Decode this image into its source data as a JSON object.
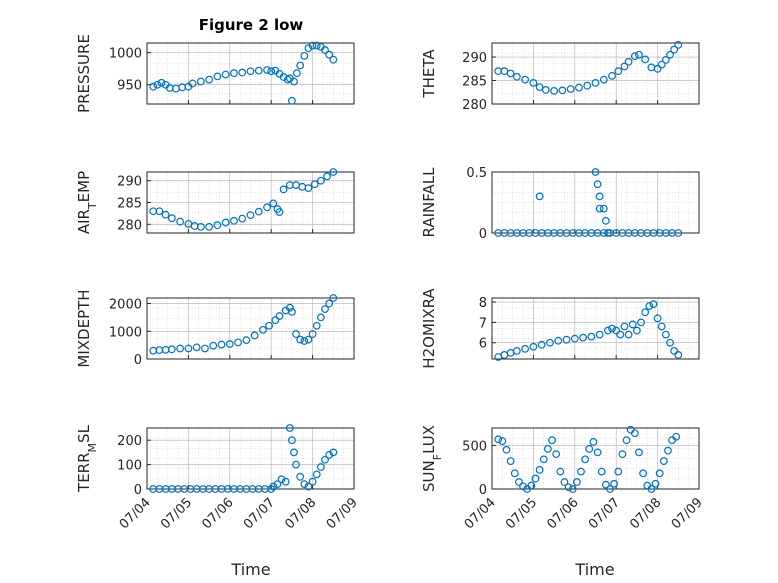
{
  "figure": {
    "title": "Figure 2 low",
    "xlabel": "Time",
    "x_ticks": [
      "07/04",
      "07/05",
      "07/06",
      "07/07",
      "07/08",
      "07/09"
    ]
  },
  "chart_data": [
    {
      "type": "scatter",
      "ylabel": "PRESSURE",
      "title": "Figure 2 low",
      "ylim": [
        920,
        1015
      ],
      "yticks": [
        950,
        1000
      ],
      "grid": true,
      "x_unit": "days since 07/04",
      "points": [
        [
          0.15,
          947
        ],
        [
          0.25,
          950
        ],
        [
          0.35,
          953
        ],
        [
          0.45,
          950
        ],
        [
          0.55,
          945
        ],
        [
          0.7,
          944
        ],
        [
          0.85,
          946
        ],
        [
          1.0,
          947
        ],
        [
          1.1,
          952
        ],
        [
          1.3,
          955
        ],
        [
          1.5,
          958
        ],
        [
          1.7,
          963
        ],
        [
          1.9,
          966
        ],
        [
          2.1,
          968
        ],
        [
          2.3,
          969
        ],
        [
          2.5,
          971
        ],
        [
          2.7,
          972
        ],
        [
          2.9,
          973
        ],
        [
          3.0,
          971
        ],
        [
          3.1,
          972
        ],
        [
          3.2,
          967
        ],
        [
          3.3,
          962
        ],
        [
          3.4,
          958
        ],
        [
          3.45,
          960
        ],
        [
          3.5,
          925
        ],
        [
          3.55,
          955
        ],
        [
          3.62,
          968
        ],
        [
          3.7,
          980
        ],
        [
          3.8,
          995
        ],
        [
          3.9,
          1007
        ],
        [
          4.0,
          1011
        ],
        [
          4.1,
          1011
        ],
        [
          4.2,
          1009
        ],
        [
          4.3,
          1004
        ],
        [
          4.4,
          997
        ],
        [
          4.5,
          989
        ]
      ]
    },
    {
      "type": "scatter",
      "ylabel": "THETA",
      "ylim": [
        280,
        293
      ],
      "yticks": [
        280,
        285,
        290
      ],
      "grid": true,
      "points": [
        [
          0.15,
          287
        ],
        [
          0.3,
          287
        ],
        [
          0.45,
          286.5
        ],
        [
          0.6,
          285.8
        ],
        [
          0.8,
          285.2
        ],
        [
          1.0,
          284.5
        ],
        [
          1.15,
          283.6
        ],
        [
          1.3,
          283
        ],
        [
          1.5,
          282.8
        ],
        [
          1.7,
          282.9
        ],
        [
          1.9,
          283.2
        ],
        [
          2.1,
          283.5
        ],
        [
          2.3,
          283.9
        ],
        [
          2.5,
          284.5
        ],
        [
          2.7,
          285.2
        ],
        [
          2.9,
          286
        ],
        [
          3.05,
          287
        ],
        [
          3.2,
          288
        ],
        [
          3.3,
          289
        ],
        [
          3.45,
          290.2
        ],
        [
          3.55,
          290.5
        ],
        [
          3.7,
          289.5
        ],
        [
          3.85,
          287.8
        ],
        [
          4.0,
          287.5
        ],
        [
          4.1,
          288.4
        ],
        [
          4.2,
          289.4
        ],
        [
          4.3,
          290.5
        ],
        [
          4.4,
          291.6
        ],
        [
          4.5,
          292.6
        ]
      ]
    },
    {
      "type": "scatter",
      "ylabel": "AIR_TEMP",
      "ylim": [
        278,
        292
      ],
      "yticks": [
        280,
        285,
        290
      ],
      "grid": true,
      "points": [
        [
          0.15,
          283
        ],
        [
          0.3,
          283
        ],
        [
          0.45,
          282.2
        ],
        [
          0.6,
          281.4
        ],
        [
          0.8,
          280.6
        ],
        [
          1.0,
          280.1
        ],
        [
          1.15,
          279.6
        ],
        [
          1.3,
          279.4
        ],
        [
          1.5,
          279.4
        ],
        [
          1.7,
          279.8
        ],
        [
          1.9,
          280.4
        ],
        [
          2.1,
          280.8
        ],
        [
          2.3,
          281.3
        ],
        [
          2.5,
          282.1
        ],
        [
          2.7,
          282.9
        ],
        [
          2.9,
          283.9
        ],
        [
          3.05,
          284.8
        ],
        [
          3.15,
          283.5
        ],
        [
          3.2,
          282.8
        ],
        [
          3.3,
          288
        ],
        [
          3.45,
          289
        ],
        [
          3.6,
          289
        ],
        [
          3.75,
          288.6
        ],
        [
          3.9,
          288.3
        ],
        [
          4.05,
          289.2
        ],
        [
          4.2,
          290
        ],
        [
          4.35,
          291
        ],
        [
          4.5,
          292
        ]
      ]
    },
    {
      "type": "scatter",
      "ylabel": "RAINFALL",
      "ylim": [
        0,
        0.5
      ],
      "yticks": [
        0,
        0.5
      ],
      "grid": true,
      "points": [
        [
          0.15,
          0
        ],
        [
          0.3,
          0
        ],
        [
          0.45,
          0
        ],
        [
          0.6,
          0
        ],
        [
          0.75,
          0
        ],
        [
          0.9,
          0
        ],
        [
          1.05,
          0
        ],
        [
          1.2,
          0
        ],
        [
          1.35,
          0
        ],
        [
          1.5,
          0
        ],
        [
          1.65,
          0
        ],
        [
          1.8,
          0
        ],
        [
          1.95,
          0
        ],
        [
          2.1,
          0
        ],
        [
          2.25,
          0
        ],
        [
          2.4,
          0
        ],
        [
          2.55,
          0
        ],
        [
          2.7,
          0
        ],
        [
          2.85,
          0
        ],
        [
          3.0,
          0
        ],
        [
          3.15,
          0
        ],
        [
          3.3,
          0
        ],
        [
          3.45,
          0
        ],
        [
          3.6,
          0
        ],
        [
          3.75,
          0
        ],
        [
          3.9,
          0
        ],
        [
          4.05,
          0
        ],
        [
          4.2,
          0
        ],
        [
          4.35,
          0
        ],
        [
          4.5,
          0
        ],
        [
          1.15,
          0.3
        ],
        [
          2.5,
          0.5
        ],
        [
          2.55,
          0.4
        ],
        [
          2.6,
          0.3
        ],
        [
          2.6,
          0.2
        ],
        [
          2.7,
          0.2
        ],
        [
          2.75,
          0.1
        ],
        [
          2.8,
          0
        ]
      ]
    },
    {
      "type": "scatter",
      "ylabel": "MIXDEPTH",
      "ylim": [
        0,
        2200
      ],
      "yticks": [
        0,
        1000,
        2000
      ],
      "grid": true,
      "points": [
        [
          0.15,
          300
        ],
        [
          0.3,
          320
        ],
        [
          0.45,
          330
        ],
        [
          0.6,
          350
        ],
        [
          0.8,
          380
        ],
        [
          1.0,
          380
        ],
        [
          1.2,
          420
        ],
        [
          1.4,
          380
        ],
        [
          1.6,
          480
        ],
        [
          1.8,
          520
        ],
        [
          2.0,
          540
        ],
        [
          2.2,
          600
        ],
        [
          2.4,
          680
        ],
        [
          2.6,
          850
        ],
        [
          2.8,
          1050
        ],
        [
          2.95,
          1200
        ],
        [
          3.1,
          1400
        ],
        [
          3.2,
          1550
        ],
        [
          3.35,
          1750
        ],
        [
          3.45,
          1850
        ],
        [
          3.5,
          1700
        ],
        [
          3.6,
          900
        ],
        [
          3.7,
          700
        ],
        [
          3.8,
          650
        ],
        [
          3.9,
          700
        ],
        [
          4.0,
          900
        ],
        [
          4.1,
          1200
        ],
        [
          4.2,
          1500
        ],
        [
          4.3,
          1800
        ],
        [
          4.4,
          2000
        ],
        [
          4.5,
          2200
        ]
      ]
    },
    {
      "type": "scatter",
      "ylabel": "H2OMIXRA",
      "ylim": [
        5.2,
        8.2
      ],
      "yticks": [
        6,
        7,
        8
      ],
      "grid": true,
      "points": [
        [
          0.15,
          5.3
        ],
        [
          0.3,
          5.4
        ],
        [
          0.45,
          5.5
        ],
        [
          0.6,
          5.6
        ],
        [
          0.8,
          5.7
        ],
        [
          1.0,
          5.8
        ],
        [
          1.2,
          5.9
        ],
        [
          1.4,
          6.0
        ],
        [
          1.6,
          6.1
        ],
        [
          1.8,
          6.15
        ],
        [
          2.0,
          6.2
        ],
        [
          2.2,
          6.25
        ],
        [
          2.4,
          6.3
        ],
        [
          2.6,
          6.4
        ],
        [
          2.8,
          6.6
        ],
        [
          2.9,
          6.7
        ],
        [
          3.0,
          6.6
        ],
        [
          3.1,
          6.4
        ],
        [
          3.2,
          6.8
        ],
        [
          3.3,
          6.4
        ],
        [
          3.4,
          6.9
        ],
        [
          3.5,
          6.6
        ],
        [
          3.6,
          7.0
        ],
        [
          3.7,
          7.5
        ],
        [
          3.8,
          7.8
        ],
        [
          3.9,
          7.9
        ],
        [
          4.0,
          7.2
        ],
        [
          4.1,
          6.8
        ],
        [
          4.2,
          6.4
        ],
        [
          4.3,
          6.0
        ],
        [
          4.4,
          5.6
        ],
        [
          4.5,
          5.4
        ]
      ]
    },
    {
      "type": "scatter",
      "ylabel": "TERR_MSL",
      "ylim": [
        0,
        250
      ],
      "yticks": [
        0,
        100,
        200
      ],
      "grid": true,
      "points": [
        [
          0.15,
          0
        ],
        [
          0.3,
          0
        ],
        [
          0.45,
          0
        ],
        [
          0.6,
          0
        ],
        [
          0.75,
          0
        ],
        [
          0.9,
          0
        ],
        [
          1.05,
          0
        ],
        [
          1.2,
          0
        ],
        [
          1.35,
          0
        ],
        [
          1.5,
          0
        ],
        [
          1.65,
          0
        ],
        [
          1.8,
          0
        ],
        [
          1.95,
          0
        ],
        [
          2.1,
          0
        ],
        [
          2.25,
          0
        ],
        [
          2.4,
          0
        ],
        [
          2.55,
          0
        ],
        [
          2.7,
          0
        ],
        [
          2.85,
          0
        ],
        [
          3.0,
          0
        ],
        [
          3.05,
          10
        ],
        [
          3.15,
          20
        ],
        [
          3.25,
          40
        ],
        [
          3.35,
          30
        ],
        [
          3.45,
          250
        ],
        [
          3.5,
          200
        ],
        [
          3.55,
          150
        ],
        [
          3.6,
          100
        ],
        [
          3.7,
          50
        ],
        [
          3.8,
          20
        ],
        [
          3.9,
          10
        ],
        [
          4.0,
          30
        ],
        [
          4.1,
          60
        ],
        [
          4.2,
          90
        ],
        [
          4.3,
          120
        ],
        [
          4.4,
          140
        ],
        [
          4.5,
          150
        ]
      ]
    },
    {
      "type": "scatter",
      "ylabel": "SUN_FLUX",
      "ylim": [
        0,
        700
      ],
      "yticks": [
        0,
        500
      ],
      "grid": true,
      "points": [
        [
          0.15,
          570
        ],
        [
          0.25,
          550
        ],
        [
          0.35,
          450
        ],
        [
          0.45,
          320
        ],
        [
          0.55,
          180
        ],
        [
          0.65,
          80
        ],
        [
          0.75,
          30
        ],
        [
          0.85,
          0
        ],
        [
          0.95,
          40
        ],
        [
          1.05,
          120
        ],
        [
          1.15,
          220
        ],
        [
          1.25,
          340
        ],
        [
          1.35,
          460
        ],
        [
          1.45,
          560
        ],
        [
          1.55,
          400
        ],
        [
          1.65,
          200
        ],
        [
          1.75,
          80
        ],
        [
          1.85,
          20
        ],
        [
          1.95,
          0
        ],
        [
          2.05,
          80
        ],
        [
          2.15,
          200
        ],
        [
          2.25,
          340
        ],
        [
          2.35,
          460
        ],
        [
          2.45,
          540
        ],
        [
          2.55,
          420
        ],
        [
          2.65,
          200
        ],
        [
          2.75,
          50
        ],
        [
          2.85,
          0
        ],
        [
          2.95,
          60
        ],
        [
          3.05,
          200
        ],
        [
          3.15,
          400
        ],
        [
          3.25,
          560
        ],
        [
          3.35,
          680
        ],
        [
          3.45,
          640
        ],
        [
          3.55,
          420
        ],
        [
          3.65,
          180
        ],
        [
          3.75,
          40
        ],
        [
          3.85,
          0
        ],
        [
          3.95,
          60
        ],
        [
          4.05,
          180
        ],
        [
          4.15,
          320
        ],
        [
          4.25,
          440
        ],
        [
          4.35,
          560
        ],
        [
          4.45,
          600
        ]
      ]
    }
  ]
}
